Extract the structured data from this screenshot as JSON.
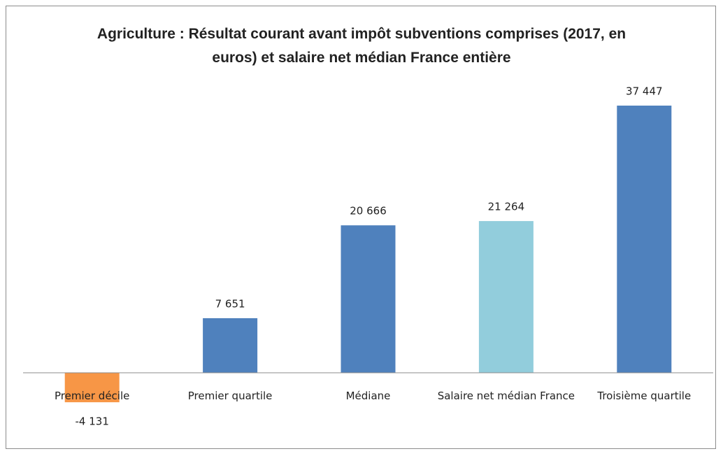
{
  "chart_data": {
    "type": "bar",
    "title": "Agriculture : Résultat courant avant impôt subventions comprises (2017, en euros) et salaire net médian France entière",
    "categories": [
      "Premier décile",
      "Premier quartile",
      "Médiane",
      "Salaire net médian France",
      "Troisième quartile"
    ],
    "values": [
      -4131,
      7651,
      20666,
      21264,
      37447
    ],
    "value_labels": [
      "-4 131",
      "7 651",
      "20 666",
      "21 264",
      "37 447"
    ],
    "colors": [
      "#f79646",
      "#4f81bd",
      "#4f81bd",
      "#92cddc",
      "#4f81bd"
    ]
  }
}
